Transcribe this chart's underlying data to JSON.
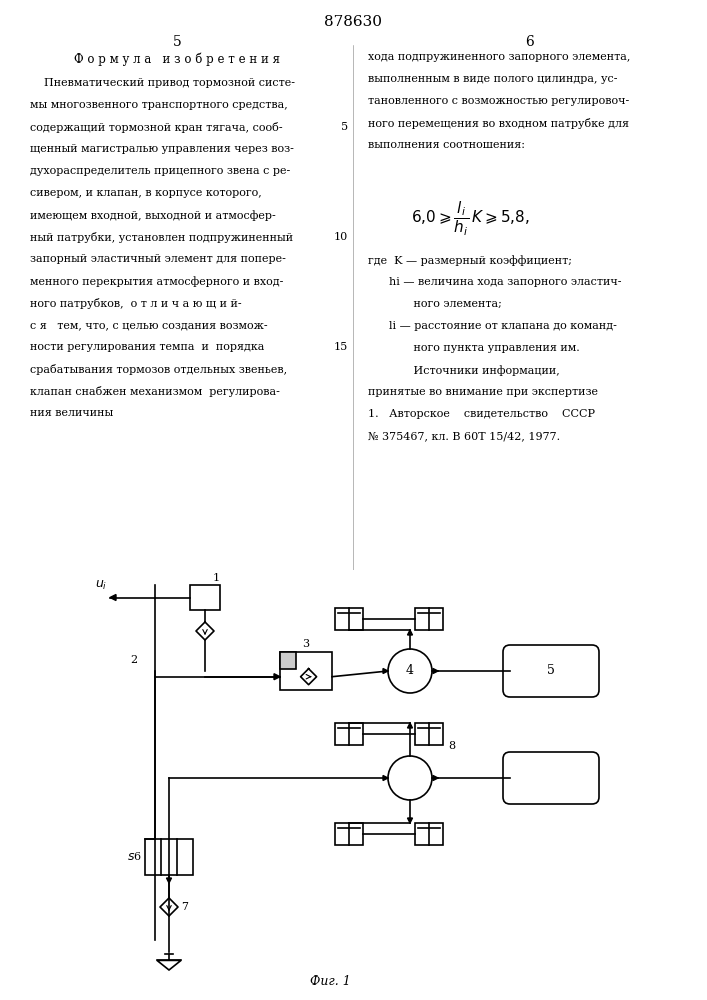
{
  "title": "878630",
  "col_left": "5",
  "col_right": "6",
  "formula_header": "Ф о р м у л а   и з о б р е т е н и я",
  "left_col_text_lines": [
    "    Пневматический привод тормозной систе-",
    "мы многозвенного транспортного средства,",
    "содержащий тормозной кран тягача, сооб-",
    "щенный магистралью управления через воз-",
    "духораспределитель прицепного звена с ре-",
    "сивером, и клапан, в корпусе которого,",
    "имеющем входной, выходной и атмосфер-",
    "ный патрубки, установлен подпружиненный",
    "запорный эластичный элемент для попере-",
    "менного перекрытия атмосферного и вход-",
    "ного патрубков,  о т л и ч а ю щ и й-",
    "с я   тем, что, с целью создания возмож-",
    "ности регулирования темпа  и  порядка",
    "срабатывания тормозов отдельных звеньев,",
    "клапан снабжен механизмом  регулирова-",
    "ния величины"
  ],
  "right_col_text_lines": [
    "хода подпружиненного запорного элемента,",
    "выполненным в виде полого цилиндра, ус-",
    "тановленного с возможностью регулировоч-",
    "ного перемещения во входном патрубке для",
    "выполнения соотношения:"
  ],
  "line_num_5": "5",
  "line_num_10": "10",
  "line_num_15": "15",
  "where_lines": [
    "где  K — размерный коэффициент;",
    "      hi — величина хода запорного эластич-",
    "             ного элемента;",
    "      li — расстояние от клапана до команд-",
    "             ного пункта управления им.",
    "             Источники информации,",
    "принятые во внимание при экспертизе",
    "1.   Авторское    свидетельство    СССР",
    "№ 375467, кл. В 60Т 15/42, 1977."
  ],
  "fig_label": "Фиг. 1",
  "bg_color": "#ffffff",
  "lc": "#000000"
}
